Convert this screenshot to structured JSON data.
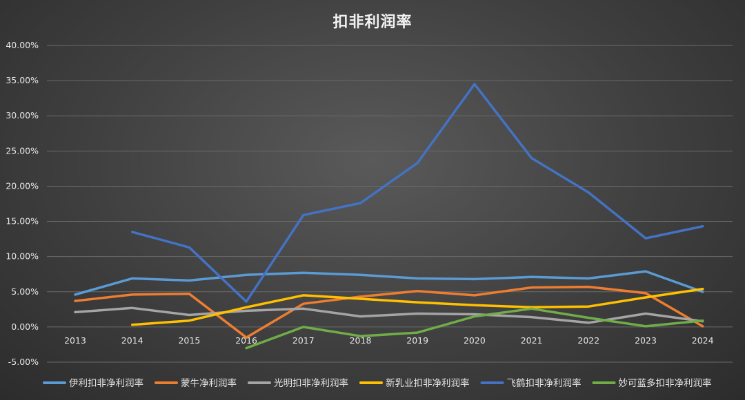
{
  "chart_data": {
    "type": "line",
    "title": "扣非利润率",
    "x": [
      "2013",
      "2014",
      "2015",
      "2016",
      "2017",
      "2018",
      "2019",
      "2020",
      "2021",
      "2022",
      "2023",
      "2024"
    ],
    "ylim": [
      -5,
      40
    ],
    "yticks": [
      "-5.00%",
      "0.00%",
      "5.00%",
      "10.00%",
      "15.00%",
      "20.00%",
      "25.00%",
      "30.00%",
      "35.00%",
      "40.00%"
    ],
    "grid": true,
    "legend_position": "bottom",
    "series": [
      {
        "name": "伊利扣非净利润率",
        "color": "#5b9bd5",
        "values": [
          4.6,
          6.9,
          6.6,
          7.4,
          7.7,
          7.4,
          6.9,
          6.8,
          7.1,
          6.9,
          7.9,
          5.0
        ]
      },
      {
        "name": "蒙牛净利润率",
        "color": "#ed7d31",
        "values": [
          3.7,
          4.6,
          4.7,
          -1.5,
          3.3,
          4.3,
          5.1,
          4.5,
          5.6,
          5.7,
          4.8,
          0.1
        ]
      },
      {
        "name": "光明扣非净利润率",
        "color": "#a5a5a5",
        "values": [
          2.1,
          2.7,
          1.7,
          2.3,
          2.6,
          1.5,
          1.9,
          1.8,
          1.4,
          0.6,
          1.9,
          0.8
        ]
      },
      {
        "name": "新乳业扣非净利润率",
        "color": "#ffc000",
        "values": [
          null,
          0.3,
          0.9,
          2.8,
          4.5,
          4.0,
          3.5,
          3.1,
          2.8,
          2.9,
          4.2,
          5.4
        ]
      },
      {
        "name": "飞鹤扣非净利润率",
        "color": "#4472c4",
        "values": [
          null,
          13.5,
          11.3,
          3.6,
          15.9,
          17.6,
          23.3,
          34.5,
          24.0,
          19.1,
          12.6,
          14.3
        ]
      },
      {
        "name": "妙可蓝多扣非净利润率",
        "color": "#70ad47",
        "values": [
          null,
          null,
          null,
          -3.0,
          0.0,
          -1.3,
          -0.8,
          1.5,
          2.6,
          1.3,
          0.1,
          0.9
        ]
      }
    ]
  }
}
